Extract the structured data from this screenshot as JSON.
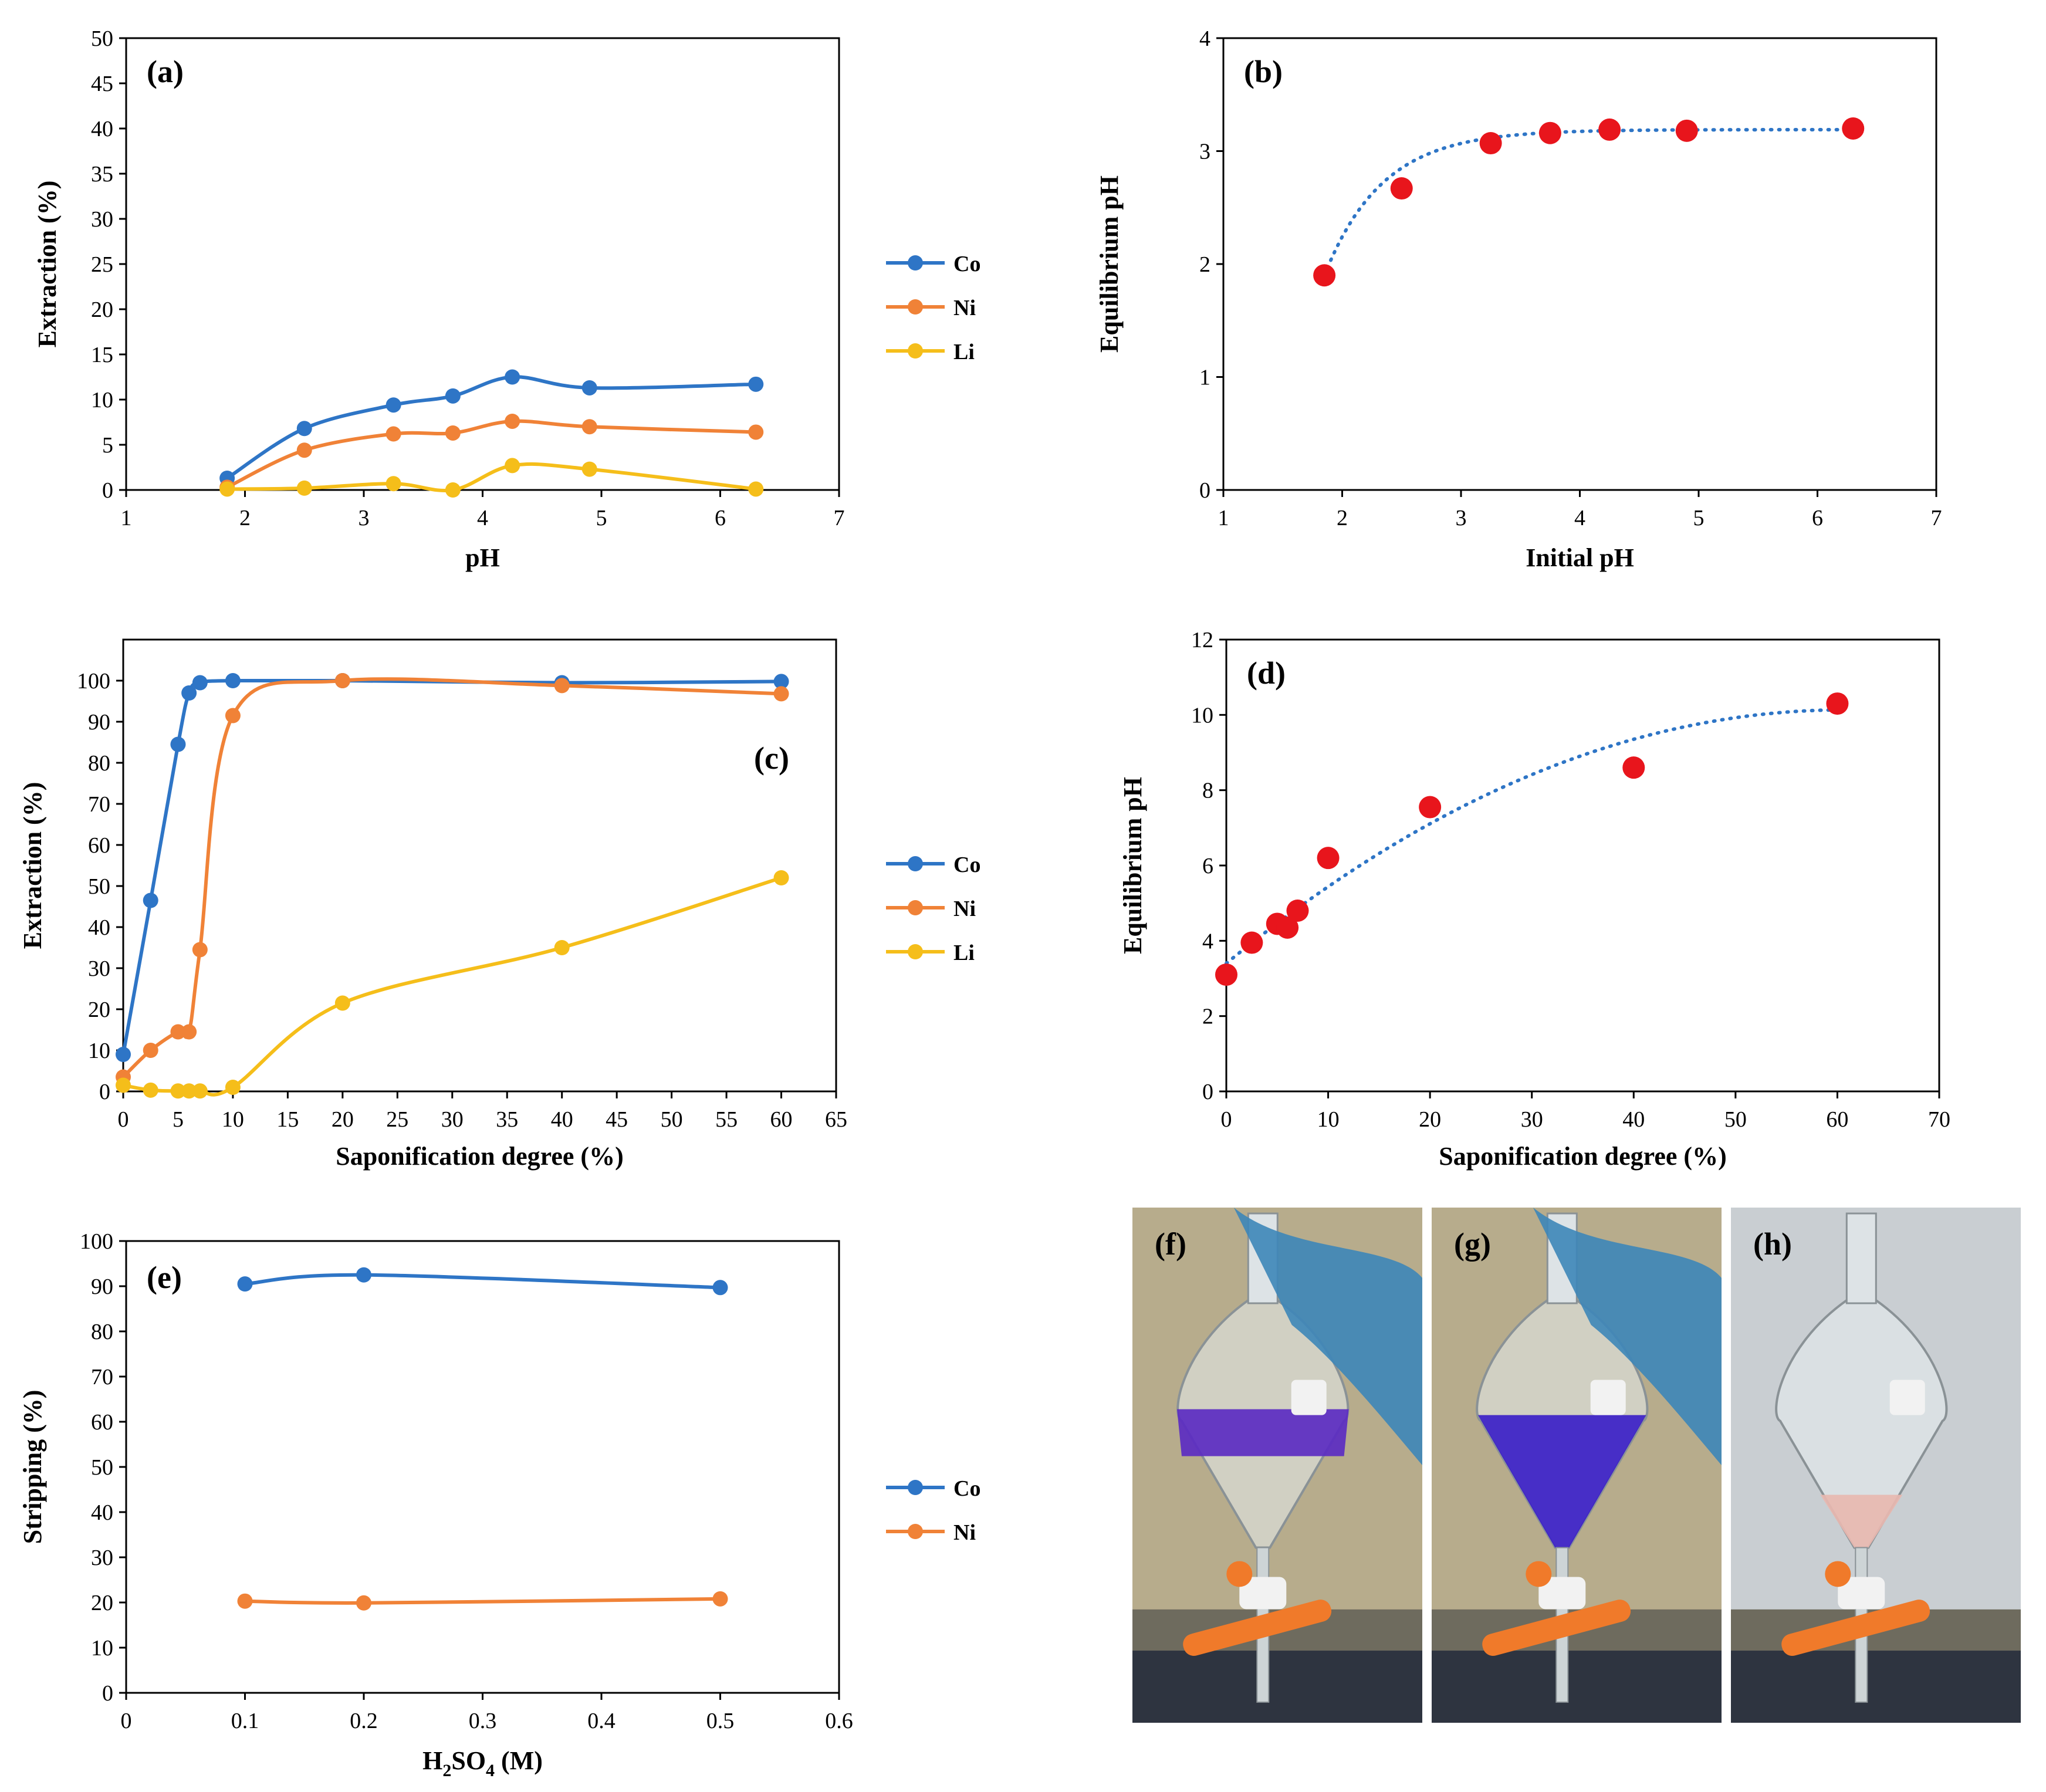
{
  "colors": {
    "Co": "#2E75C6",
    "Ni": "#F08237",
    "Li": "#F5BE1A",
    "red": "#E8151C",
    "fit": "#2E75C6"
  },
  "chart_data": [
    {
      "id": "a",
      "panel_label": "(a)",
      "type": "line",
      "xlabel": "pH",
      "ylabel": "Extraction (%)",
      "xlim": [
        1,
        7
      ],
      "ylim": [
        0,
        50
      ],
      "xticks": [
        1,
        2,
        3,
        4,
        5,
        6,
        7
      ],
      "yticks": [
        0,
        5,
        10,
        15,
        20,
        25,
        30,
        35,
        40,
        45,
        50
      ],
      "x": [
        1.85,
        2.5,
        3.25,
        3.75,
        4.25,
        4.9,
        6.3
      ],
      "series": [
        {
          "name": "Co",
          "values": [
            1.3,
            6.8,
            9.4,
            10.4,
            12.5,
            11.3,
            11.7
          ]
        },
        {
          "name": "Ni",
          "values": [
            0.3,
            4.4,
            6.2,
            6.3,
            7.6,
            7.0,
            6.4
          ]
        },
        {
          "name": "Li",
          "values": [
            0.1,
            0.2,
            0.7,
            0.0,
            2.7,
            2.3,
            0.1
          ]
        }
      ],
      "legend": "right",
      "grid": false
    },
    {
      "id": "b",
      "panel_label": "(b)",
      "type": "scatter",
      "xlabel": "Initial pH",
      "ylabel": "Equilibrium pH",
      "xlim": [
        1,
        7
      ],
      "ylim": [
        0,
        4
      ],
      "xticks": [
        1,
        2,
        3,
        4,
        5,
        6,
        7
      ],
      "yticks": [
        0,
        1,
        2,
        3,
        4
      ],
      "x": [
        1.85,
        2.5,
        3.25,
        3.75,
        4.25,
        4.9,
        6.3
      ],
      "values": [
        1.9,
        2.67,
        3.07,
        3.16,
        3.19,
        3.18,
        3.2
      ],
      "trendline": "dotted",
      "grid": false
    },
    {
      "id": "c",
      "panel_label": "(c)",
      "type": "line",
      "xlabel": "Saponification degree (%)",
      "ylabel": "Extraction (%)",
      "xlim": [
        0,
        65
      ],
      "ylim": [
        0,
        110
      ],
      "xticks": [
        0,
        5,
        10,
        15,
        20,
        25,
        30,
        35,
        40,
        45,
        50,
        55,
        60,
        65
      ],
      "yticks": [
        0,
        10,
        20,
        30,
        40,
        50,
        60,
        70,
        80,
        90,
        100
      ],
      "x": [
        0,
        2.5,
        5,
        6,
        7,
        10,
        20,
        40,
        60
      ],
      "series": [
        {
          "name": "Co",
          "values": [
            9,
            46.5,
            84.5,
            97,
            99.5,
            100,
            100,
            99.5,
            99.8
          ]
        },
        {
          "name": "Ni",
          "values": [
            3.5,
            10,
            14.5,
            14.5,
            34.5,
            91.5,
            100,
            98.8,
            96.8
          ]
        },
        {
          "name": "Li",
          "values": [
            1.5,
            0.3,
            0.1,
            0.1,
            0.1,
            1,
            21.5,
            35,
            52
          ]
        }
      ],
      "legend": "right",
      "grid": false
    },
    {
      "id": "d",
      "panel_label": "(d)",
      "type": "scatter",
      "xlabel": "Saponification degree (%)",
      "ylabel": "Equilibrium pH",
      "xlim": [
        0,
        70
      ],
      "ylim": [
        0,
        12
      ],
      "xticks": [
        0,
        10,
        20,
        30,
        40,
        50,
        60,
        70
      ],
      "yticks": [
        0,
        2,
        4,
        6,
        8,
        10,
        12
      ],
      "x": [
        0,
        2.5,
        5,
        6,
        7,
        10,
        20,
        40,
        60
      ],
      "values": [
        3.1,
        3.95,
        4.45,
        4.35,
        4.8,
        6.2,
        7.55,
        8.6,
        10.3
      ],
      "trendline": "dotted",
      "grid": false
    },
    {
      "id": "e",
      "panel_label": "(e)",
      "type": "line",
      "xlabel": "H2SO4 (M)",
      "ylabel": "Stripping (%)",
      "xlim": [
        0,
        0.6
      ],
      "ylim": [
        0,
        100
      ],
      "xticks": [
        0,
        0.1,
        0.2,
        0.3,
        0.4,
        0.5,
        0.6
      ],
      "yticks": [
        0,
        10,
        20,
        30,
        40,
        50,
        60,
        70,
        80,
        90,
        100
      ],
      "x": [
        0.1,
        0.2,
        0.5
      ],
      "series": [
        {
          "name": "Co",
          "values": [
            90.5,
            92.5,
            89.7
          ]
        },
        {
          "name": "Ni",
          "values": [
            20.3,
            19.9,
            20.8
          ]
        }
      ],
      "legend": "right",
      "grid": false
    }
  ],
  "xlabel_e": {
    "main": "H",
    "sub1": "2",
    "mid": "SO",
    "sub2": "4",
    "tail": " (M)"
  },
  "photos": [
    {
      "label": "(f)",
      "liquid": "#5B2BC2"
    },
    {
      "label": "(g)",
      "liquid": "#3B1FC8"
    },
    {
      "label": "(h)",
      "liquid": "#E8B8B0"
    }
  ]
}
